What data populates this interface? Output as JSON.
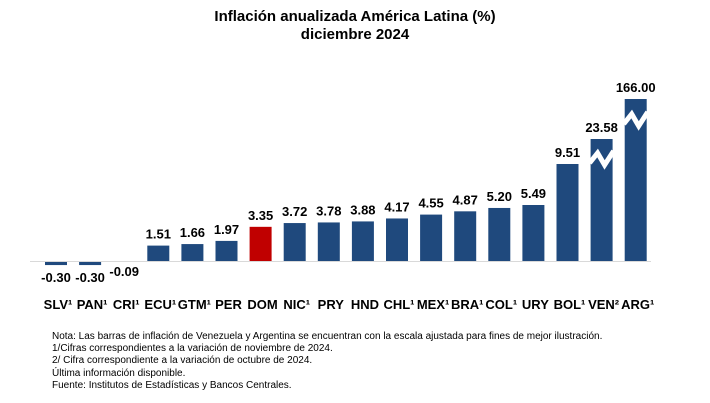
{
  "chart_data": {
    "type": "bar",
    "title": "Inflación anualizada América Latina (%)",
    "subtitle": "diciembre 2024",
    "xlabel": "",
    "ylabel": "",
    "grid": false,
    "legend": "none",
    "categories": [
      "SLV¹",
      "PAN¹",
      "CRI¹",
      "ECU¹",
      "GTM¹",
      "PER",
      "DOM",
      "NIC¹",
      "PRY",
      "HND",
      "CHL¹",
      "MEX¹",
      "BRA¹",
      "COL¹",
      "URY",
      "BOL¹",
      "VEN²",
      "ARG¹"
    ],
    "values": [
      -0.3,
      -0.3,
      -0.09,
      1.51,
      1.66,
      1.97,
      3.35,
      3.72,
      3.78,
      3.88,
      4.17,
      4.55,
      4.87,
      5.2,
      5.49,
      9.51,
      23.58,
      166.0
    ],
    "value_labels": [
      "-0.30",
      "-0.30",
      "-0.09",
      "1.51",
      "1.66",
      "1.97",
      "3.35",
      "3.72",
      "3.78",
      "3.88",
      "4.17",
      "4.55",
      "4.87",
      "5.20",
      "5.49",
      "9.51",
      "23.58",
      "166.00"
    ],
    "highlight_category": "DOM",
    "scale_broken_categories": [
      "VEN²",
      "ARG¹"
    ],
    "colors": {
      "bar": "#1F497D",
      "highlight": "#C00000",
      "axis": "#D9D9D9"
    }
  },
  "notes": [
    "Nota: Las barras de inflación de Venezuela y Argentina se encuentran con la escala ajustada para fines de mejor ilustración.",
    "1/Cifras correspondientes a la variación de noviembre de 2024.",
    "2/ Cifra correspondiente a la variación de octubre de 2024.",
    " Última información disponible.",
    "Fuente: Institutos de Estadísticas y Bancos Centrales."
  ]
}
